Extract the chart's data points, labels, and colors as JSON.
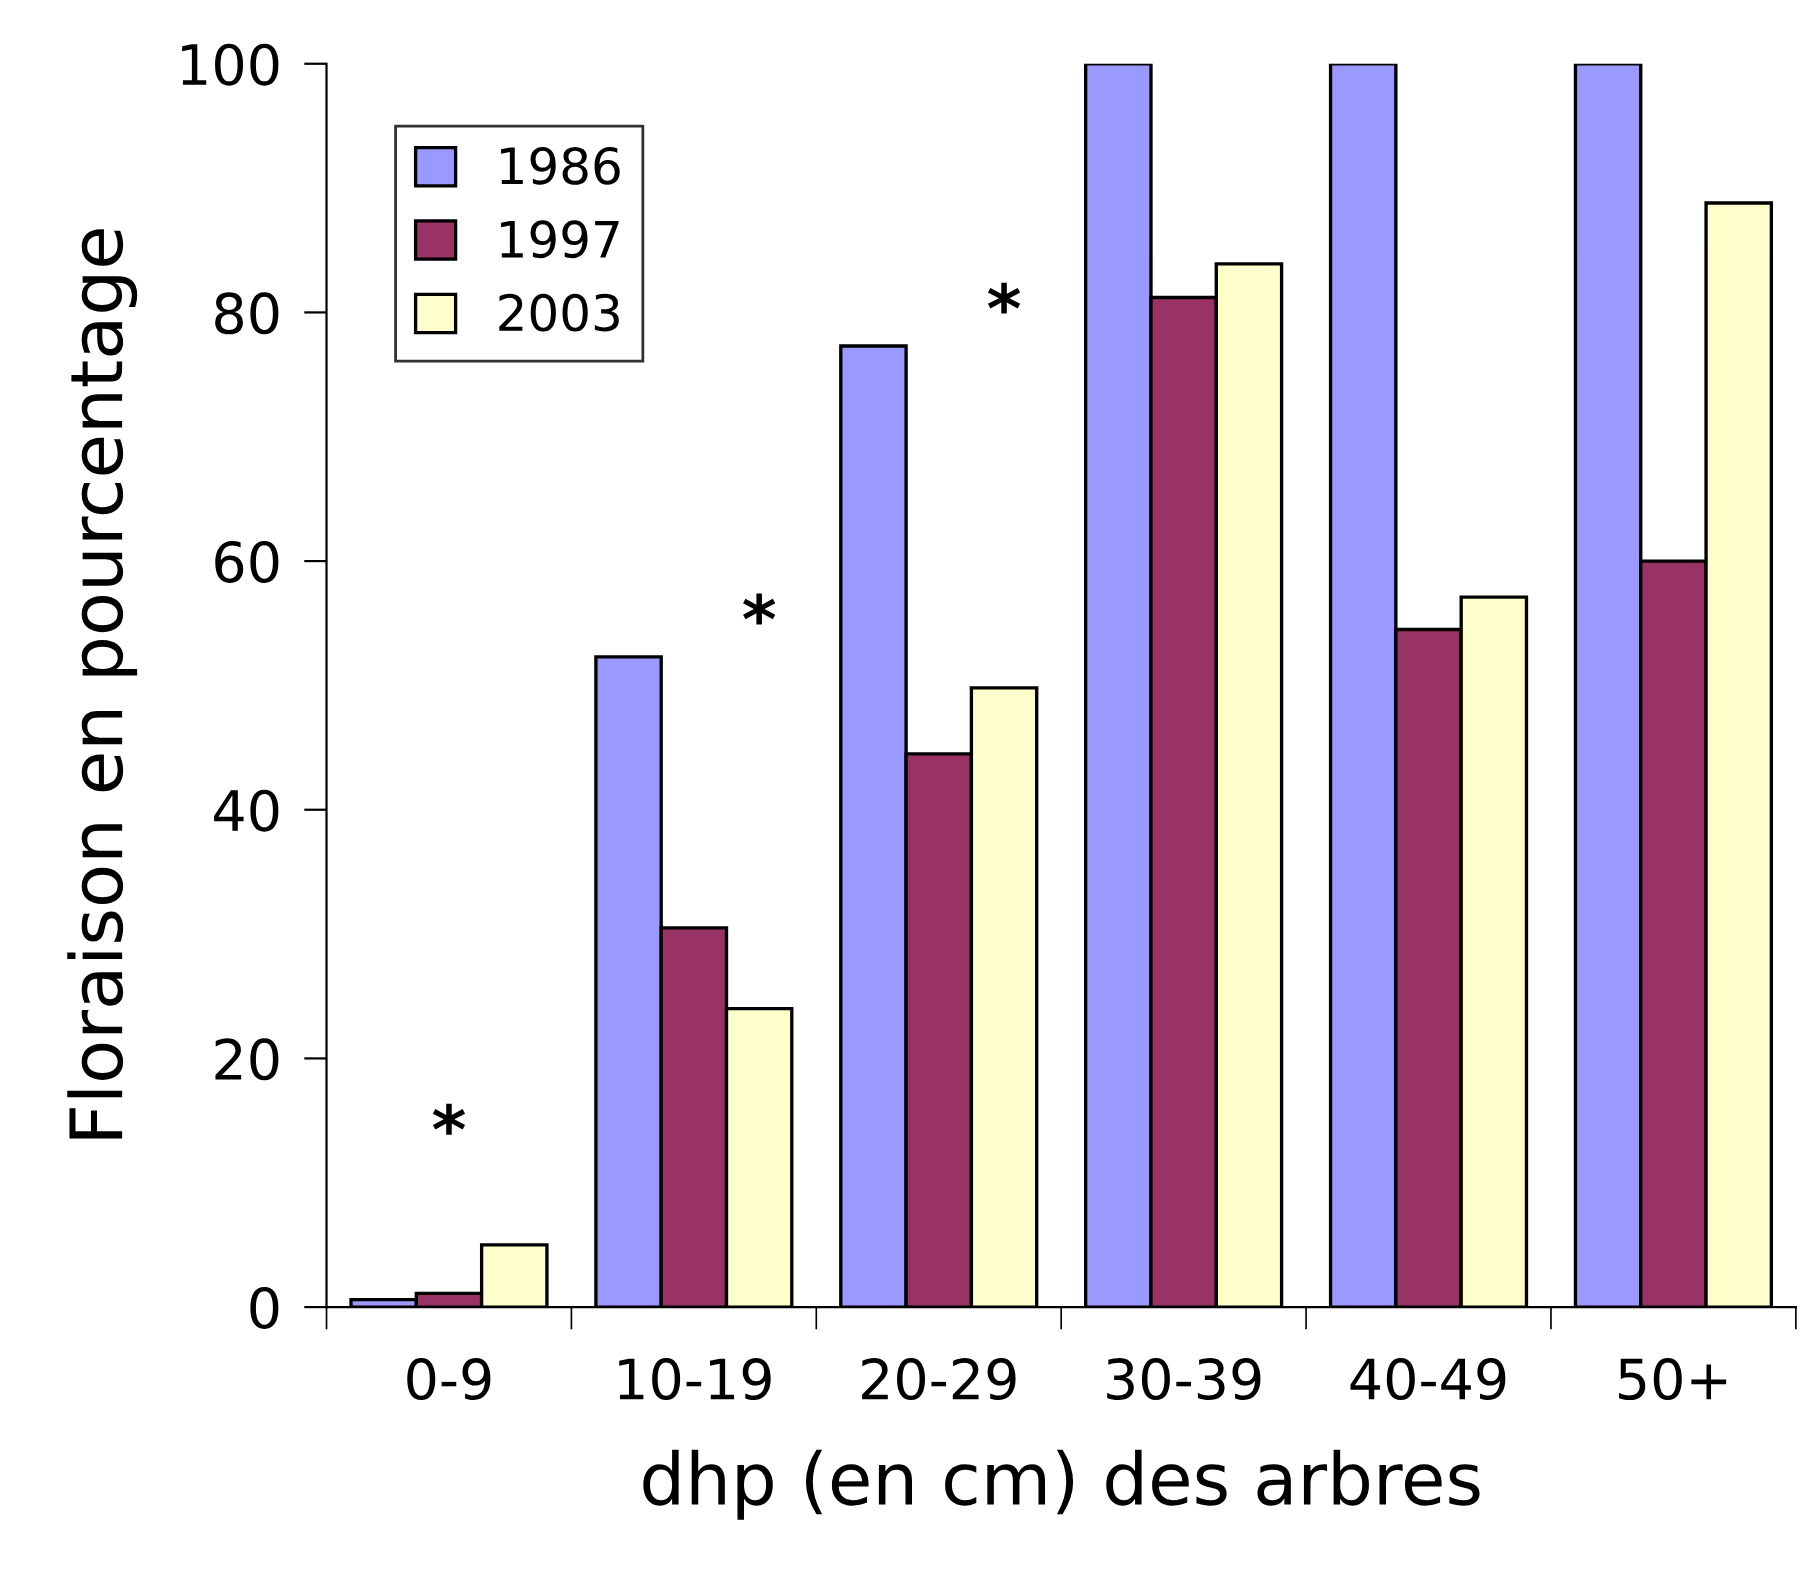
{
  "chart_data": {
    "type": "bar",
    "xlabel": "dhp (en cm) des arbres",
    "ylabel": "Floraison en pourcentage",
    "categories": [
      "0-9",
      "10-19",
      "20-29",
      "30-39",
      "40-49",
      "50+"
    ],
    "series": [
      {
        "name": "1986",
        "color": "#9999ff",
        "values": [
          0.6,
          52.3,
          77.3,
          100,
          100,
          100
        ]
      },
      {
        "name": "1997",
        "color": "#993366",
        "values": [
          1.1,
          30.5,
          44.5,
          81.2,
          54.5,
          60
        ]
      },
      {
        "name": "2003",
        "color": "#ffffcc",
        "values": [
          5.0,
          24.0,
          49.8,
          83.9,
          57.1,
          88.8
        ]
      }
    ],
    "ylim": [
      0,
      100
    ],
    "yticks": [
      0,
      20,
      40,
      60,
      80,
      100
    ],
    "grid": false,
    "legend": "top left",
    "annotations": [
      "*",
      "*",
      "*"
    ]
  }
}
